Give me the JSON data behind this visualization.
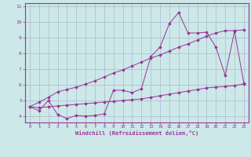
{
  "xlabel": "Windchill (Refroidissement éolien,°C)",
  "background_color": "#cce8e8",
  "line_color": "#993399",
  "x_data": [
    0,
    1,
    2,
    3,
    4,
    5,
    6,
    7,
    8,
    9,
    10,
    11,
    12,
    13,
    14,
    15,
    16,
    17,
    18,
    19,
    20,
    21,
    22,
    23
  ],
  "y_main": [
    4.6,
    4.35,
    5.0,
    4.1,
    3.85,
    4.05,
    4.0,
    4.05,
    4.15,
    5.65,
    5.65,
    5.5,
    5.75,
    7.8,
    8.4,
    9.9,
    10.6,
    9.3,
    9.3,
    9.35,
    8.4,
    6.6,
    9.4,
    6.1
  ],
  "y_upper": [
    4.6,
    4.9,
    5.2,
    5.55,
    5.7,
    5.85,
    6.05,
    6.25,
    6.5,
    6.75,
    6.95,
    7.2,
    7.45,
    7.7,
    7.9,
    8.15,
    8.4,
    8.6,
    8.85,
    9.1,
    9.3,
    9.45,
    9.45,
    9.5
  ],
  "y_lower": [
    4.6,
    4.55,
    4.6,
    4.65,
    4.7,
    4.75,
    4.8,
    4.85,
    4.9,
    4.95,
    5.0,
    5.05,
    5.1,
    5.2,
    5.3,
    5.4,
    5.5,
    5.6,
    5.7,
    5.8,
    5.85,
    5.9,
    5.95,
    6.05
  ],
  "ylim": [
    3.6,
    11.2
  ],
  "yticks": [
    4,
    5,
    6,
    7,
    8,
    9,
    10,
    11
  ],
  "xlim": [
    -0.5,
    23.5
  ],
  "grid_color": "#aabbcc"
}
